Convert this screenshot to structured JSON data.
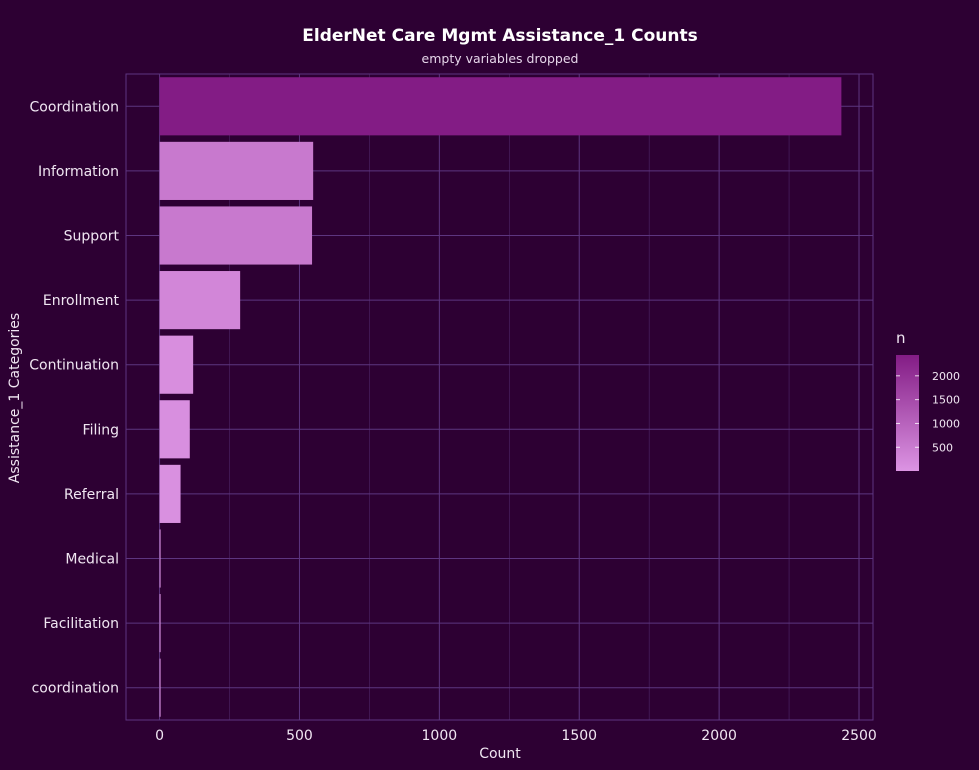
{
  "chart_data": {
    "type": "bar",
    "orientation": "horizontal",
    "title": "ElderNet Care Mgmt Assistance_1 Counts",
    "subtitle": "empty variables dropped",
    "xlabel": "Count",
    "ylabel": "Assistance_1 Categories",
    "categories": [
      "Coordination",
      "Information",
      "Support",
      "Enrollment",
      "Continuation",
      "Filing",
      "Referral",
      "Medical",
      "Facilitation",
      "coordination"
    ],
    "values": [
      2437,
      549,
      545,
      288,
      120,
      108,
      75,
      3,
      2,
      2
    ],
    "xlim": [
      -120,
      2550
    ],
    "x_ticks": [
      0,
      500,
      1000,
      1500,
      2000,
      2500
    ],
    "x_tick_labels": [
      "0",
      "500",
      "1000",
      "1500",
      "2000",
      "2500"
    ],
    "grid": true,
    "legend": {
      "title": "n",
      "position": "right",
      "type": "colorbar",
      "range": [
        2,
        2437
      ],
      "ticks": [
        500,
        1000,
        1500,
        2000
      ],
      "tick_labels": [
        "500",
        "1000",
        "1500",
        "2000"
      ]
    },
    "colors": {
      "background": "#2d0033",
      "grid": "#5d3580",
      "gradient_low": "#dc94e3",
      "gradient_high": "#831c85"
    }
  }
}
